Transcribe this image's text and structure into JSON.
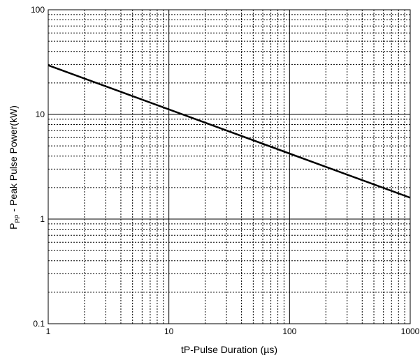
{
  "chart_data": {
    "type": "line",
    "title": "",
    "xlabel": "tP-Pulse Duration (µs)",
    "ylabel_main": "P",
    "ylabel_sub": "PP",
    "ylabel_rest": " - Peak Pulse Power(kW)",
    "xscale": "log",
    "yscale": "log",
    "xlim": [
      1,
      1000
    ],
    "ylim": [
      0.1,
      100
    ],
    "grid": true,
    "x_tick_labels": [
      "1",
      "10",
      "100",
      "1000"
    ],
    "y_tick_labels": [
      "0.1",
      "1",
      "10",
      "100"
    ],
    "series": [
      {
        "x": [
          1,
          1000
        ],
        "y": [
          29.5,
          1.6
        ],
        "color": "#000000"
      }
    ]
  }
}
